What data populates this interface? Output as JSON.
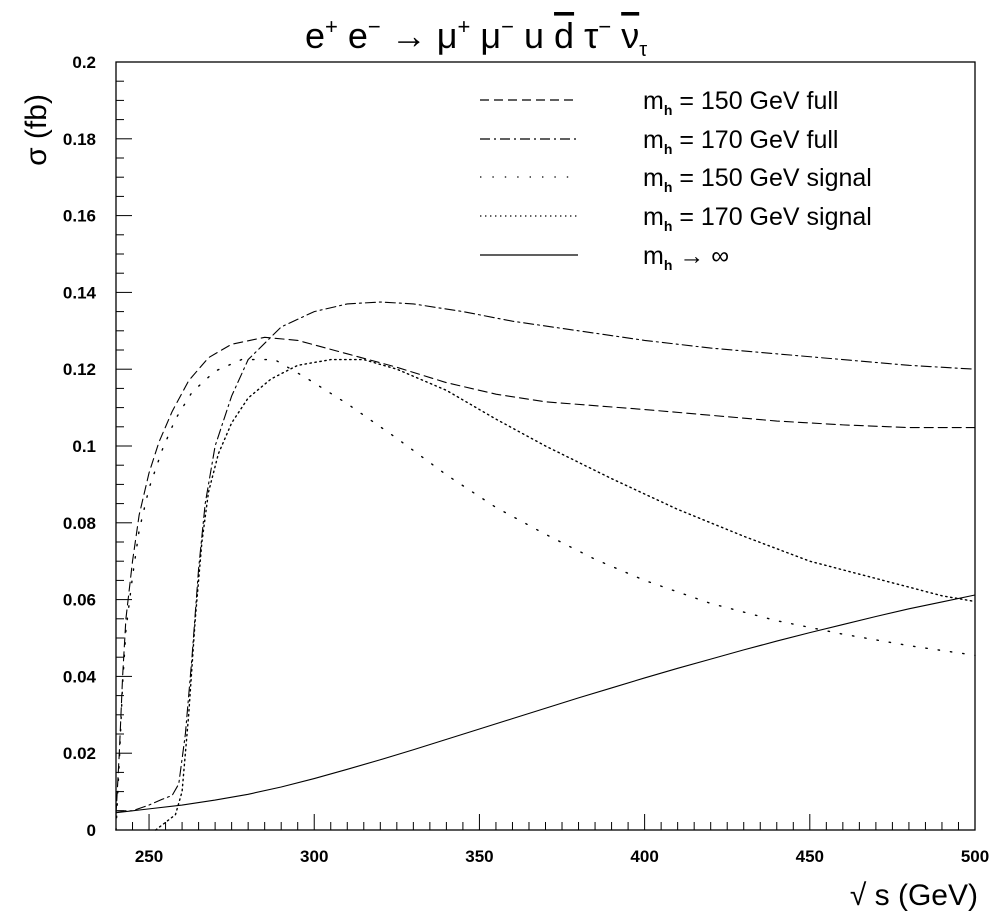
{
  "chart_data": {
    "type": "line",
    "title": {
      "parts": [
        {
          "text": "e"
        },
        {
          "text": "+",
          "sup": true
        },
        {
          "text": " e"
        },
        {
          "text": "−",
          "sup": true
        },
        {
          "text": "  →  "
        },
        {
          "text": "μ"
        },
        {
          "text": "+",
          "sup": true
        },
        {
          "text": " μ"
        },
        {
          "text": "−",
          "sup": true
        },
        {
          "text": " u "
        },
        {
          "text": "d",
          "bar": true
        },
        {
          "text": " τ"
        },
        {
          "text": "−",
          "sup": true
        },
        {
          "text": " "
        },
        {
          "text": "ν",
          "bar": true
        },
        {
          "text": "τ",
          "sub": true
        }
      ]
    },
    "xlabel": "√ s (GeV)",
    "ylabel": "σ (fb)",
    "xlim": [
      240,
      500
    ],
    "ylim": [
      0,
      0.2
    ],
    "x_ticks": [
      250,
      300,
      350,
      400,
      450,
      500
    ],
    "y_ticks": [
      0,
      0.02,
      0.04,
      0.06,
      0.08,
      0.1,
      0.12,
      0.14,
      0.16,
      0.18,
      0.2
    ],
    "y_tick_labels": [
      "0",
      "0.02",
      "0.04",
      "0.06",
      "0.08",
      "0.1",
      "0.12",
      "0.14",
      "0.16",
      "0.18",
      "0.2"
    ],
    "grid": false,
    "legend_position": "top-right",
    "series": [
      {
        "label_main": "m",
        "label_sub": "h",
        "label_rest": " = 150 GeV full",
        "style": "dashed",
        "color": "#000000",
        "points": [
          [
            240,
            0.004
          ],
          [
            241,
            0.02
          ],
          [
            242,
            0.04
          ],
          [
            243,
            0.055
          ],
          [
            245,
            0.07
          ],
          [
            247,
            0.082
          ],
          [
            250,
            0.093
          ],
          [
            253,
            0.101
          ],
          [
            257,
            0.109
          ],
          [
            262,
            0.117
          ],
          [
            268,
            0.123
          ],
          [
            275,
            0.1265
          ],
          [
            285,
            0.1283
          ],
          [
            295,
            0.1275
          ],
          [
            310,
            0.124
          ],
          [
            325,
            0.1205
          ],
          [
            340,
            0.1165
          ],
          [
            355,
            0.1135
          ],
          [
            370,
            0.1115
          ],
          [
            385,
            0.1105
          ],
          [
            400,
            0.1095
          ],
          [
            420,
            0.108
          ],
          [
            440,
            0.1065
          ],
          [
            460,
            0.1055
          ],
          [
            480,
            0.1048
          ],
          [
            500,
            0.1048
          ]
        ]
      },
      {
        "label_main": "m",
        "label_sub": "h",
        "label_rest": " = 170 GeV full",
        "style": "dashdot",
        "color": "#000000",
        "points": [
          [
            240,
            0.005
          ],
          [
            245,
            0.005
          ],
          [
            250,
            0.0065
          ],
          [
            254,
            0.008
          ],
          [
            257,
            0.009
          ],
          [
            259,
            0.012
          ],
          [
            261,
            0.025
          ],
          [
            263,
            0.045
          ],
          [
            265,
            0.068
          ],
          [
            267,
            0.085
          ],
          [
            270,
            0.1
          ],
          [
            275,
            0.113
          ],
          [
            280,
            0.1225
          ],
          [
            290,
            0.131
          ],
          [
            300,
            0.135
          ],
          [
            310,
            0.137
          ],
          [
            320,
            0.1375
          ],
          [
            330,
            0.137
          ],
          [
            345,
            0.135
          ],
          [
            360,
            0.1325
          ],
          [
            380,
            0.13
          ],
          [
            400,
            0.1275
          ],
          [
            420,
            0.1255
          ],
          [
            440,
            0.124
          ],
          [
            460,
            0.1225
          ],
          [
            480,
            0.121
          ],
          [
            500,
            0.12
          ]
        ]
      },
      {
        "label_main": "m",
        "label_sub": "h",
        "label_rest": " = 150 GeV signal",
        "style": "sparse-dot",
        "color": "#000000",
        "points": [
          [
            240,
            0.0
          ],
          [
            241,
            0.018
          ],
          [
            242,
            0.038
          ],
          [
            243,
            0.052
          ],
          [
            245,
            0.066
          ],
          [
            247,
            0.078
          ],
          [
            250,
            0.089
          ],
          [
            254,
            0.099
          ],
          [
            258,
            0.107
          ],
          [
            263,
            0.114
          ],
          [
            270,
            0.1195
          ],
          [
            278,
            0.1225
          ],
          [
            288,
            0.1225
          ],
          [
            298,
            0.1175
          ],
          [
            310,
            0.111
          ],
          [
            325,
            0.102
          ],
          [
            340,
            0.0925
          ],
          [
            355,
            0.084
          ],
          [
            370,
            0.077
          ],
          [
            385,
            0.0705
          ],
          [
            400,
            0.065
          ],
          [
            420,
            0.059
          ],
          [
            440,
            0.0545
          ],
          [
            460,
            0.051
          ],
          [
            480,
            0.048
          ],
          [
            500,
            0.0455
          ]
        ]
      },
      {
        "label_main": "m",
        "label_sub": "h",
        "label_rest": " = 170 GeV signal",
        "style": "dotted",
        "color": "#000000",
        "points": [
          [
            252,
            0.0
          ],
          [
            255,
            0.002
          ],
          [
            258,
            0.004
          ],
          [
            260,
            0.01
          ],
          [
            262,
            0.03
          ],
          [
            264,
            0.055
          ],
          [
            266,
            0.075
          ],
          [
            268,
            0.088
          ],
          [
            271,
            0.098
          ],
          [
            275,
            0.106
          ],
          [
            280,
            0.1125
          ],
          [
            287,
            0.1175
          ],
          [
            295,
            0.121
          ],
          [
            305,
            0.1225
          ],
          [
            315,
            0.1225
          ],
          [
            325,
            0.12
          ],
          [
            340,
            0.1145
          ],
          [
            355,
            0.107
          ],
          [
            370,
            0.1
          ],
          [
            390,
            0.0915
          ],
          [
            410,
            0.0835
          ],
          [
            430,
            0.0765
          ],
          [
            450,
            0.07
          ],
          [
            470,
            0.0655
          ],
          [
            490,
            0.061
          ],
          [
            500,
            0.0595
          ]
        ]
      },
      {
        "label_main": "m",
        "label_sub": "h",
        "label_rest": " → ∞",
        "style": "solid",
        "color": "#000000",
        "points": [
          [
            240,
            0.0045
          ],
          [
            250,
            0.0055
          ],
          [
            260,
            0.0065
          ],
          [
            270,
            0.0078
          ],
          [
            280,
            0.0093
          ],
          [
            290,
            0.0112
          ],
          [
            300,
            0.0134
          ],
          [
            310,
            0.0158
          ],
          [
            320,
            0.0183
          ],
          [
            330,
            0.0209
          ],
          [
            340,
            0.0236
          ],
          [
            350,
            0.0263
          ],
          [
            360,
            0.029
          ],
          [
            370,
            0.0317
          ],
          [
            380,
            0.0344
          ],
          [
            390,
            0.037
          ],
          [
            400,
            0.0396
          ],
          [
            410,
            0.0421
          ],
          [
            420,
            0.0445
          ],
          [
            430,
            0.0469
          ],
          [
            440,
            0.0492
          ],
          [
            450,
            0.0514
          ],
          [
            460,
            0.0535
          ],
          [
            470,
            0.0556
          ],
          [
            480,
            0.0576
          ],
          [
            490,
            0.0594
          ],
          [
            500,
            0.0612
          ]
        ]
      }
    ]
  }
}
